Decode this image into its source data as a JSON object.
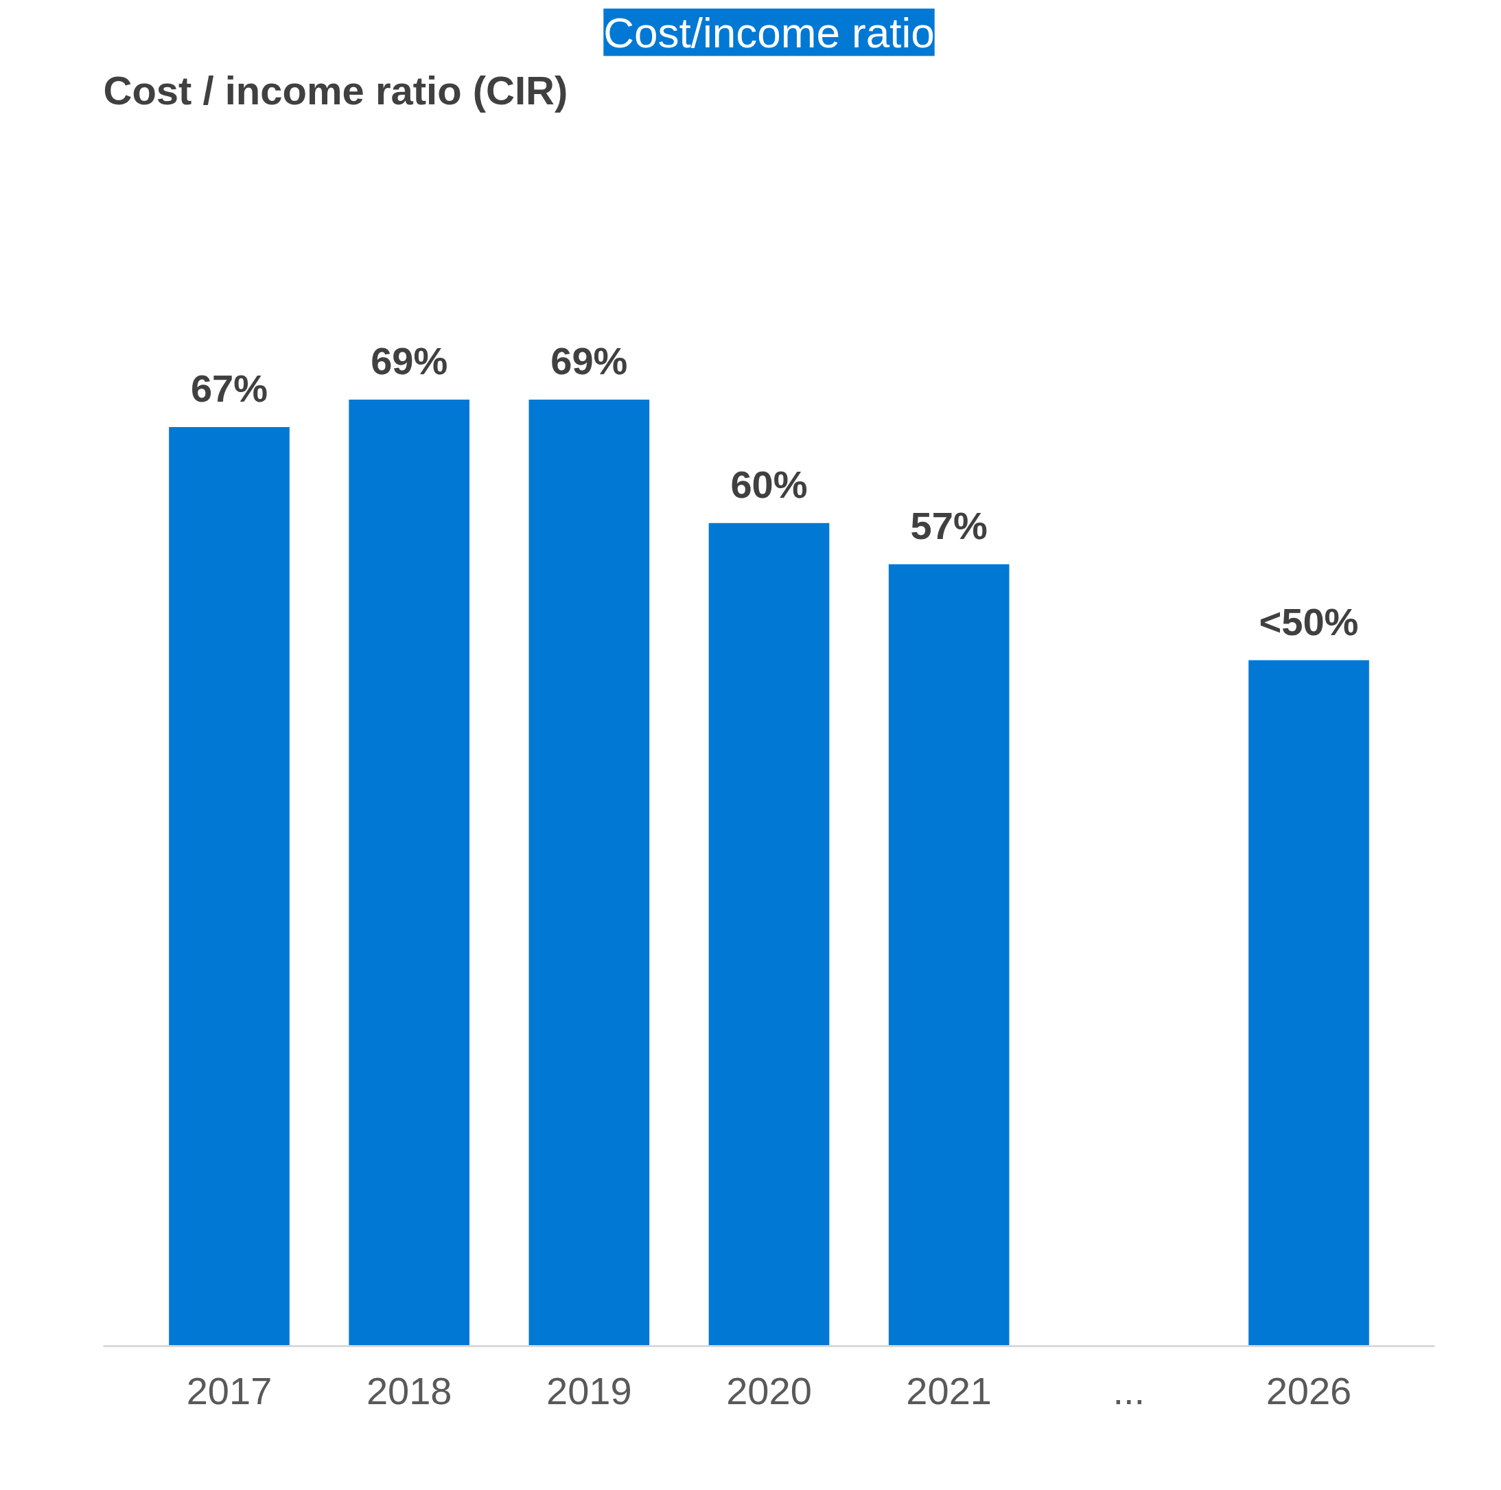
{
  "chart_data": {
    "type": "bar",
    "title": "Cost/income ratio",
    "subtitle": "Cost / income ratio (CIR)",
    "categories": [
      "2017",
      "2018",
      "2019",
      "2020",
      "2021",
      "...",
      "2026"
    ],
    "values": [
      67,
      69,
      69,
      60,
      57,
      null,
      50
    ],
    "value_labels": [
      "67%",
      "69%",
      "69%",
      "60%",
      "57%",
      null,
      "<50%"
    ],
    "color": "#0078d4",
    "grid": false
  }
}
